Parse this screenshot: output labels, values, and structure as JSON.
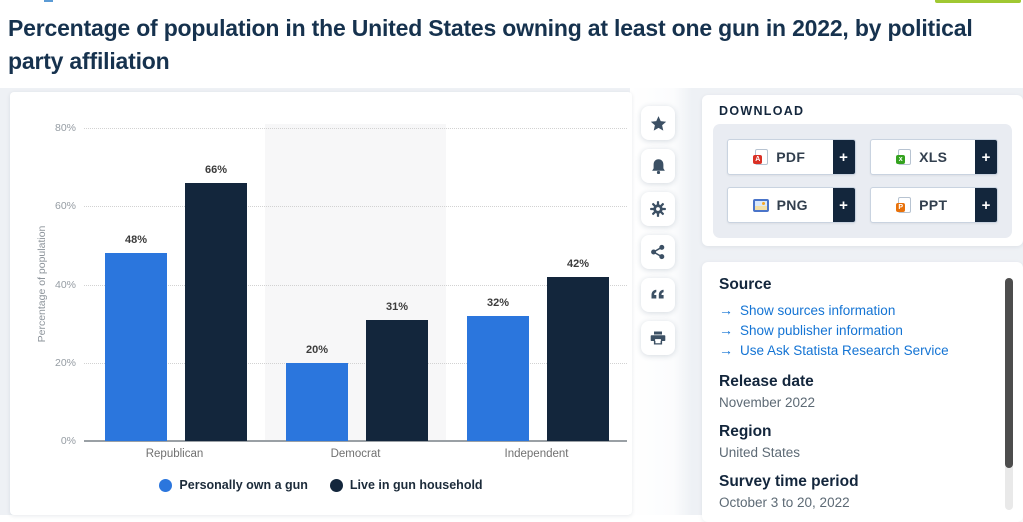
{
  "page": {
    "title": "Percentage of population in the United States owning at least one gun in 2022, by political party affiliation"
  },
  "colors": {
    "title": "#16324e",
    "navy": "#13263c",
    "accent_blue": "#2b76dd",
    "link": "#1474d4"
  },
  "chart_data": {
    "type": "bar",
    "categories": [
      "Republican",
      "Democrat",
      "Independent"
    ],
    "series": [
      {
        "name": "Personally own a gun",
        "color": "#2b76dd",
        "values": [
          48,
          20,
          32
        ]
      },
      {
        "name": "Live in gun household",
        "color": "#13263c",
        "values": [
          66,
          31,
          42
        ]
      }
    ],
    "value_suffix": "%",
    "ylabel": "Percentage of population",
    "ylim": [
      0,
      80
    ],
    "yticks": [
      "0%",
      "20%",
      "40%",
      "60%",
      "80%"
    ],
    "grid": "horizontal-dotted",
    "legend_position": "bottom",
    "plot_band_category": "Democrat"
  },
  "chart_actions": [
    {
      "icon": "star-icon",
      "title": "favorite"
    },
    {
      "icon": "bell-icon",
      "title": "alert"
    },
    {
      "icon": "gear-icon",
      "title": "settings"
    },
    {
      "icon": "share-icon",
      "title": "share"
    },
    {
      "icon": "quote-icon",
      "title": "cite"
    },
    {
      "icon": "printer-icon",
      "title": "print"
    }
  ],
  "download": {
    "heading": "DOWNLOAD",
    "buttons": [
      {
        "label": "PDF",
        "icon": "pdf-file-icon",
        "badge_color": "#d93025",
        "badge_letter": "A",
        "plus": "+"
      },
      {
        "label": "XLS",
        "icon": "xls-file-icon",
        "badge_color": "#34a21f",
        "badge_letter": "x",
        "plus": "+"
      },
      {
        "label": "PNG",
        "icon": "png-image-icon",
        "badge_color": "#4a74c9",
        "badge_letter": "",
        "plus": "+"
      },
      {
        "label": "PPT",
        "icon": "ppt-file-icon",
        "badge_color": "#e8710a",
        "badge_letter": "P",
        "plus": "+"
      }
    ]
  },
  "info": {
    "source_heading": "Source",
    "link_arrow": "→",
    "links": [
      "Show sources information",
      "Show publisher information",
      "Use Ask Statista Research Service"
    ],
    "sections": [
      {
        "heading": "Release date",
        "value": "November 2022"
      },
      {
        "heading": "Region",
        "value": "United States"
      },
      {
        "heading": "Survey time period",
        "value": "October 3 to 20, 2022"
      }
    ]
  }
}
